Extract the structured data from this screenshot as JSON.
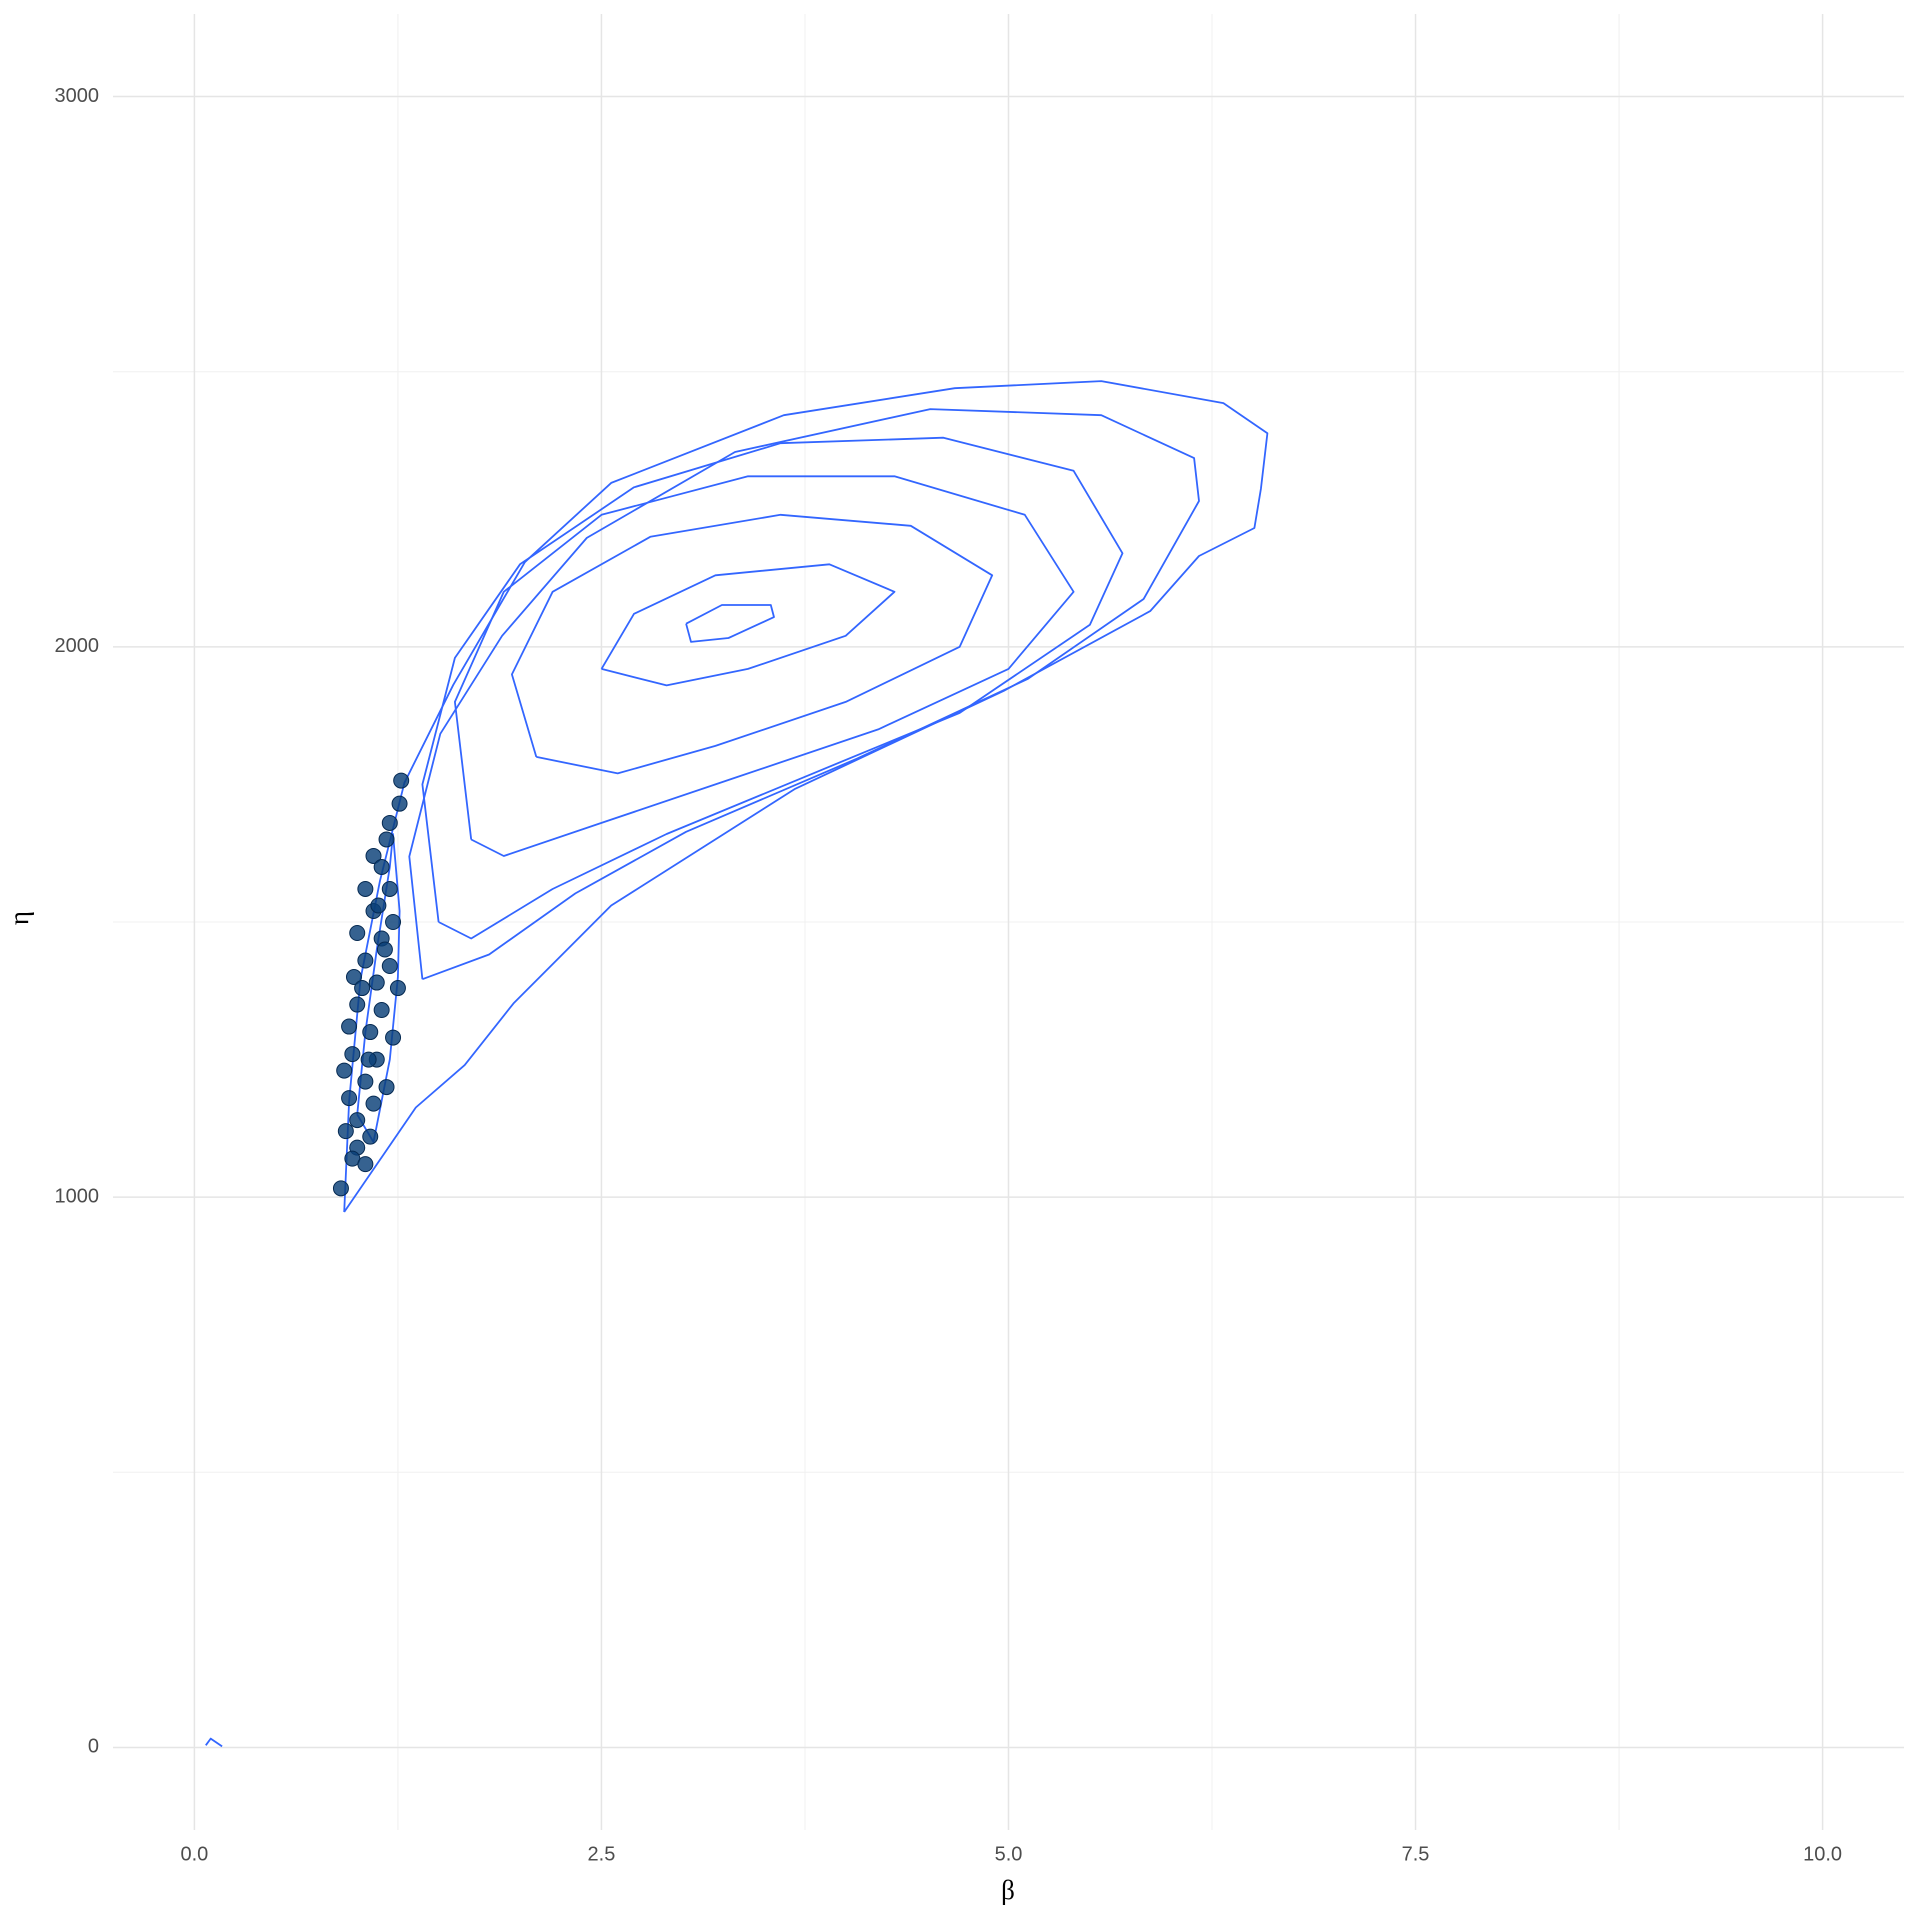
{
  "chart_data": {
    "type": "contour",
    "x_label": "β",
    "y_label": "η",
    "xlim": [
      -0.5,
      10.5
    ],
    "ylim": [
      -150,
      3150
    ],
    "xticks": [
      {
        "value": 0,
        "label": "0.0"
      },
      {
        "value": 2.5,
        "label": "2.5"
      },
      {
        "value": 5,
        "label": "5.0"
      },
      {
        "value": 7.5,
        "label": "7.5"
      },
      {
        "value": 10,
        "label": "10.0"
      }
    ],
    "yticks": [
      0,
      1000,
      2000,
      3000
    ],
    "x_minor_ticks": [
      1.25,
      3.75,
      6.25,
      8.75
    ],
    "y_minor_ticks": [
      500,
      1500,
      2500
    ],
    "grid": true,
    "contour_color": "#3366ff",
    "point_color": "#0a3f78",
    "contours": [
      {
        "x": [
          0.92,
          1.36,
          1.66,
          1.96,
          2.56,
          3.69,
          4.97,
          5.87,
          6.17,
          6.51,
          6.55,
          6.59,
          6.32,
          5.57,
          4.67,
          3.62,
          2.56,
          2.03,
          1.59,
          1.29,
          1.14,
          1.02,
          0.95,
          0.92
        ],
        "y": [
          973,
          1163,
          1240,
          1352,
          1530,
          1742,
          1920,
          2065,
          2165,
          2216,
          2287,
          2388,
          2443,
          2483,
          2470,
          2421,
          2298,
          2154,
          1931,
          1753,
          1575,
          1396,
          1174,
          973
        ]
      },
      {
        "x": [
          1.4,
          1.32,
          1.51,
          1.89,
          2.41,
          3.32,
          4.52,
          5.57,
          6.14,
          6.17,
          5.83,
          5.12,
          4.07,
          3.02,
          2.34,
          1.81,
          1.4
        ],
        "y": [
          1396,
          1619,
          1842,
          2020,
          2198,
          2354,
          2432,
          2421,
          2343,
          2265,
          2087,
          1942,
          1797,
          1664,
          1552,
          1441,
          1396
        ]
      },
      {
        "x": [
          1.5,
          1.4,
          1.6,
          2.0,
          2.7,
          3.6,
          4.6,
          5.4,
          5.7,
          5.5,
          4.7,
          3.8,
          2.9,
          2.2,
          1.7,
          1.5
        ],
        "y": [
          1500,
          1750,
          1980,
          2150,
          2290,
          2370,
          2380,
          2320,
          2170,
          2040,
          1880,
          1770,
          1660,
          1560,
          1470,
          1500
        ]
      },
      {
        "x": [
          1.7,
          1.6,
          1.9,
          2.5,
          3.4,
          4.3,
          5.1,
          5.4,
          5.0,
          4.2,
          3.3,
          2.5,
          1.9,
          1.7
        ],
        "y": [
          1650,
          1900,
          2100,
          2240,
          2310,
          2310,
          2240,
          2100,
          1960,
          1850,
          1760,
          1680,
          1620,
          1650
        ]
      },
      {
        "x": [
          2.1,
          1.95,
          2.2,
          2.8,
          3.6,
          4.4,
          4.9,
          4.7,
          4.0,
          3.2,
          2.6,
          2.1
        ],
        "y": [
          1800,
          1950,
          2100,
          2200,
          2240,
          2220,
          2130,
          2000,
          1900,
          1820,
          1770,
          1800
        ]
      },
      {
        "x": [
          2.5,
          2.7,
          3.2,
          3.9,
          4.3,
          4.0,
          3.4,
          2.9,
          2.5
        ],
        "y": [
          1960,
          2060,
          2130,
          2150,
          2100,
          2020,
          1960,
          1930,
          1960
        ]
      },
      {
        "x": [
          3.02,
          3.24,
          3.54,
          3.56,
          3.28,
          3.05,
          3.02
        ],
        "y": [
          2042,
          2076,
          2076,
          2054,
          2016,
          2009,
          2042
        ]
      },
      {
        "x": [
          1.0,
          1.05,
          1.12,
          1.2,
          1.22,
          1.26,
          1.25,
          1.2,
          1.1,
          1.0
        ],
        "y": [
          1150,
          1300,
          1450,
          1600,
          1660,
          1520,
          1400,
          1250,
          1100,
          1150
        ]
      },
      {
        "x": [
          0.07,
          0.1,
          0.17
        ],
        "y": [
          4,
          16,
          2
        ]
      }
    ],
    "points": {
      "x": [
        0.9,
        1.27,
        1.26,
        1.2,
        1.18,
        1.1,
        1.15,
        1.05,
        1.2,
        1.1,
        1.22,
        1.0,
        1.15,
        1.05,
        1.2,
        0.98,
        1.12,
        1.25,
        1.0,
        1.15,
        0.95,
        1.08,
        1.22,
        0.97,
        1.12,
        0.92,
        1.05,
        1.18,
        0.95,
        1.1,
        1.0,
        0.93,
        1.08,
        1.0,
        0.97,
        1.05,
        1.13,
        1.03,
        1.17,
        1.07
      ],
      "y": [
        1016,
        1757,
        1715,
        1680,
        1650,
        1620,
        1600,
        1560,
        1560,
        1520,
        1500,
        1480,
        1470,
        1430,
        1420,
        1400,
        1390,
        1380,
        1350,
        1340,
        1310,
        1300,
        1290,
        1260,
        1250,
        1230,
        1210,
        1200,
        1180,
        1170,
        1140,
        1120,
        1110,
        1090,
        1070,
        1060,
        1530,
        1380,
        1450,
        1250
      ]
    }
  }
}
